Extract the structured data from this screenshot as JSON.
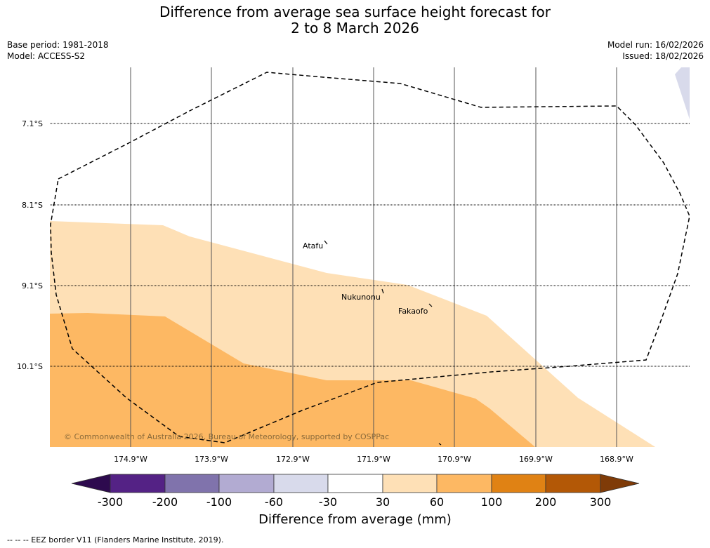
{
  "title": {
    "line1": "Difference from average sea surface height forecast for",
    "line2": "2 to 8 March 2026"
  },
  "meta_left": {
    "base_period": "Base period: 1981-2018",
    "model": "Model: ACCESS-S2"
  },
  "meta_right": {
    "model_run": "Model run: 16/02/2026",
    "issued": "Issued: 18/02/2026"
  },
  "map": {
    "latitudes": [
      "7.1°S",
      "8.1°S",
      "9.1°S",
      "10.1°S"
    ],
    "longitudes": [
      "174.9°W",
      "173.9°W",
      "172.9°W",
      "171.9°W",
      "170.9°W",
      "169.9°W",
      "168.9°W"
    ],
    "places": {
      "atafu": "Atafu",
      "nukunonu": "Nukunonu",
      "fakaofo": "Fakaofo"
    },
    "copyright": "© Commonwealth of Australia 2026, Bureau of Meteorology, supported by COSPPac"
  },
  "colorbar": {
    "title": "Difference from average (mm)",
    "ticks": [
      "-300",
      "-200",
      "-100",
      "-60",
      "-30",
      "30",
      "60",
      "100",
      "200",
      "300"
    ],
    "colors": {
      "below_min": "#2d0a4e",
      "bin1": "#542285",
      "bin2": "#8073ac",
      "bin3": "#b2abd2",
      "bin4": "#d8daeb",
      "bin5": "#ffffff",
      "bin6": "#fee0b6",
      "bin7": "#fdb863",
      "bin8": "#e08214",
      "bin9": "#b35806",
      "above_max": "#7f3b08"
    }
  },
  "footer": "--  --  -- EEZ border V11 (Flanders Marine Institute, 2019)."
}
